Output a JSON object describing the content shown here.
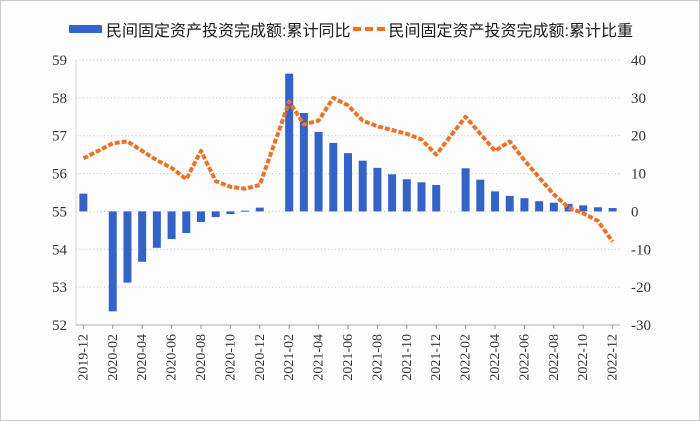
{
  "legend": {
    "bar_label": "民间固定资产投资完成额:累计同比",
    "line_label": "民间固定资产投资完成额:累计比重"
  },
  "chart_data": {
    "type": "bar+line combo",
    "title": "",
    "x": [
      "2019-12",
      "2020-02",
      "2020-03",
      "2020-04",
      "2020-05",
      "2020-06",
      "2020-07",
      "2020-08",
      "2020-09",
      "2020-10",
      "2020-11",
      "2020-12",
      "2021-02",
      "2021-03",
      "2021-04",
      "2021-05",
      "2021-06",
      "2021-07",
      "2021-08",
      "2021-09",
      "2021-10",
      "2021-11",
      "2021-12",
      "2022-02",
      "2022-03",
      "2022-04",
      "2022-05",
      "2022-06",
      "2022-07",
      "2022-08",
      "2022-09",
      "2022-10",
      "2022-11",
      "2022-12"
    ],
    "x_note": "monthly data, no January observations (axis keeps empty January slots)",
    "x_tick_labels": [
      "2019-12",
      "2020-02",
      "2020-04",
      "2020-06",
      "2020-08",
      "2020-10",
      "2020-12",
      "2021-02",
      "2021-04",
      "2021-06",
      "2021-08",
      "2021-10",
      "2021-12",
      "2022-02",
      "2022-04",
      "2022-06",
      "2022-08",
      "2022-10",
      "2022-12"
    ],
    "series": [
      {
        "name": "民间固定资产投资完成额:累计同比",
        "type": "bar",
        "axis": "right",
        "unit": "%",
        "color": "#3463C7",
        "values": [
          4.7,
          -26.4,
          -18.8,
          -13.3,
          -9.6,
          -7.3,
          -5.7,
          -2.8,
          -1.5,
          -0.7,
          0.2,
          1.0,
          36.4,
          26.0,
          21.0,
          18.1,
          15.4,
          13.4,
          11.5,
          9.8,
          8.5,
          7.7,
          7.0,
          11.4,
          8.4,
          5.3,
          4.1,
          3.5,
          2.7,
          2.3,
          2.0,
          1.6,
          1.1,
          0.9
        ]
      },
      {
        "name": "民间固定资产投资完成额:累计比重",
        "type": "line",
        "axis": "left",
        "unit": "%",
        "color": "#ED7228",
        "line_style": "dashed",
        "values": [
          56.4,
          56.8,
          56.85,
          56.6,
          56.35,
          56.15,
          55.85,
          56.6,
          55.8,
          55.65,
          55.6,
          55.7,
          57.9,
          57.3,
          57.4,
          58.0,
          57.8,
          57.4,
          57.25,
          57.15,
          57.05,
          56.9,
          56.5,
          57.5,
          57.05,
          56.6,
          56.85,
          56.35,
          55.9,
          55.45,
          55.1,
          54.95,
          54.75,
          54.2
        ]
      }
    ],
    "left_axis": {
      "ticks": [
        59,
        58,
        57,
        56,
        55,
        54,
        53,
        52
      ],
      "range": [
        52,
        59
      ]
    },
    "right_axis": {
      "ticks": [
        40,
        30,
        20,
        10,
        0,
        -10,
        -20,
        -30
      ],
      "range": [
        -30,
        40
      ]
    },
    "grid": true,
    "gridline_style": "dotted",
    "legend_position": "top"
  },
  "colors": {
    "bar": "#3463C7",
    "line": "#ED7228",
    "gridline": "#b9c8dd",
    "axis_line": "#b6bac2",
    "tick": "#8f949c",
    "axis_text": "#333333"
  }
}
